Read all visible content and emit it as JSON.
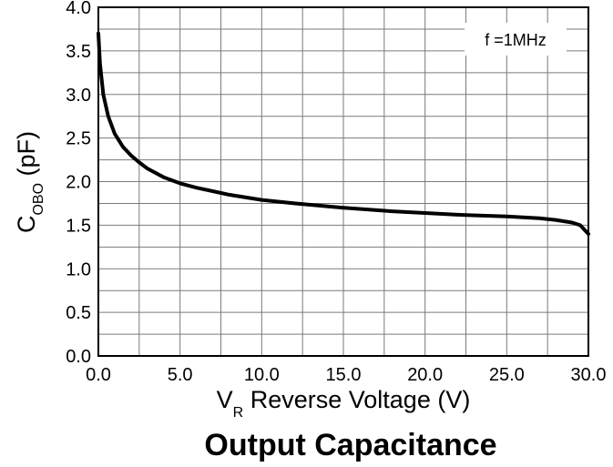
{
  "chart_data": {
    "type": "line",
    "title": "Output Capacitance",
    "xlabel": {
      "main": "V",
      "sub": "R",
      "rest": " Reverse Voltage (V)"
    },
    "ylabel": {
      "main": "C",
      "sub": "OBO",
      "rest": " (pF)"
    },
    "annotation": "f =1MHz",
    "xlim": [
      0,
      30
    ],
    "ylim": [
      0,
      4
    ],
    "x_ticks": [
      "0.0",
      "5.0",
      "10.0",
      "15.0",
      "20.0",
      "25.0",
      "30.0"
    ],
    "y_ticks": [
      "0.0",
      "0.5",
      "1.0",
      "1.5",
      "2.0",
      "2.5",
      "3.0",
      "3.5",
      "4.0"
    ],
    "grid": true,
    "series": [
      {
        "x": [
          0.0,
          0.1,
          0.3,
          0.6,
          1.0,
          1.5,
          2.0,
          2.5,
          3.0,
          4.0,
          5.0,
          6.0,
          7.0,
          8.0,
          10.0,
          12.0,
          15.0,
          18.0,
          20.0,
          22.0,
          25.0,
          27.0,
          28.0,
          29.0,
          29.5,
          30.0
        ],
        "y": [
          3.7,
          3.35,
          3.0,
          2.75,
          2.55,
          2.4,
          2.3,
          2.22,
          2.15,
          2.05,
          1.98,
          1.93,
          1.89,
          1.85,
          1.79,
          1.75,
          1.7,
          1.66,
          1.64,
          1.62,
          1.6,
          1.58,
          1.56,
          1.53,
          1.5,
          1.4
        ]
      }
    ]
  }
}
